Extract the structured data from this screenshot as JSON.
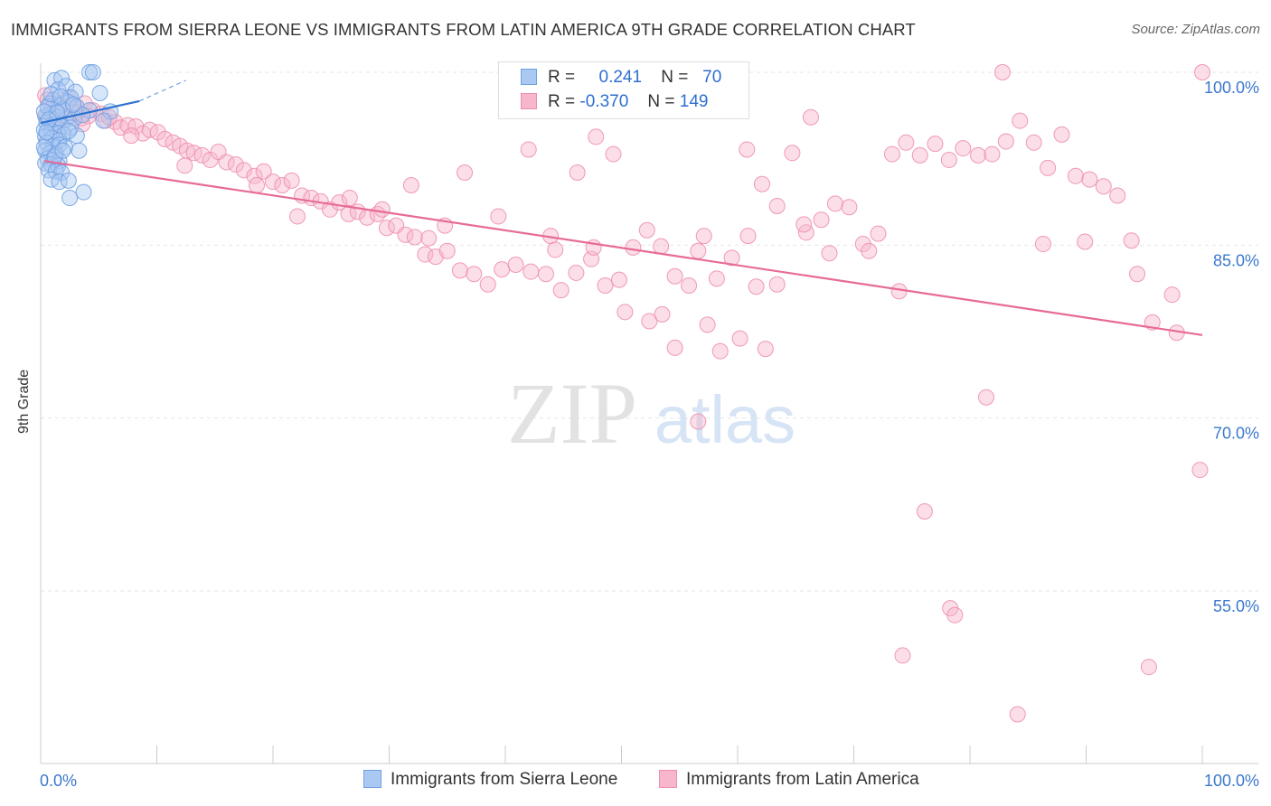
{
  "title": "IMMIGRANTS FROM SIERRA LEONE VS IMMIGRANTS FROM LATIN AMERICA 9TH GRADE CORRELATION CHART",
  "source": "Source: ZipAtlas.com",
  "watermark": {
    "zip": "ZIP",
    "atlas": "atlas"
  },
  "legend": {
    "rows": [
      {
        "r_label": "R =",
        "r_value": "0.241",
        "n_label": "N =",
        "n_value": "70"
      },
      {
        "r_label": "R =",
        "r_value": "-0.370",
        "n_label": "N =",
        "n_value": "149"
      }
    ]
  },
  "bottom_legend": [
    "Immigrants from Sierra Leone",
    "Immigrants from Latin America"
  ],
  "colors": {
    "blue_fill": "#a9c8f2",
    "blue_stroke": "#6fa0e2",
    "blue_line": "#2e73d0",
    "pink_fill": "#f7b6cb",
    "pink_stroke": "#ee8fae",
    "pink_line": "#e76a98",
    "tick_text": "#3b78cc",
    "grid": "#e6e6e6"
  },
  "chart_data": {
    "type": "scatter",
    "title": "IMMIGRANTS FROM SIERRA LEONE VS IMMIGRANTS FROM LATIN AMERICA 9TH GRADE CORRELATION CHART",
    "xlabel": "",
    "ylabel": "9th Grade",
    "xlim": [
      0,
      100
    ],
    "ylim": [
      40,
      101.5
    ],
    "x_tick_labels": [
      {
        "value": 0,
        "label": "0.0%"
      },
      {
        "value": 100,
        "label": "100.0%"
      }
    ],
    "y_tick_labels": [
      {
        "value": 100,
        "label": "100.0%"
      },
      {
        "value": 85,
        "label": "85.0%"
      },
      {
        "value": 70,
        "label": "70.0%"
      },
      {
        "value": 55,
        "label": "55.0%"
      }
    ],
    "series": [
      {
        "name": "Immigrants from Sierra Leone",
        "color": "blue",
        "R": 0.241,
        "N": 70,
        "trend": {
          "x": [
            0,
            8.5
          ],
          "y": [
            95.6,
            97.5
          ],
          "dash_to": [
            12.5,
            99.3
          ]
        },
        "points": [
          [
            1.2,
            99.3
          ],
          [
            1.8,
            99.5
          ],
          [
            4.2,
            100
          ],
          [
            4.5,
            100
          ],
          [
            1.5,
            98.5
          ],
          [
            2.2,
            98.8
          ],
          [
            3,
            98.3
          ],
          [
            5.1,
            98.2
          ],
          [
            2.6,
            97.8
          ],
          [
            1.1,
            97.6
          ],
          [
            0.8,
            97.3
          ],
          [
            1.6,
            97.1
          ],
          [
            2.4,
            97.4
          ],
          [
            3.1,
            97
          ],
          [
            4.2,
            96.7
          ],
          [
            6,
            96.6
          ],
          [
            0.4,
            96.2
          ],
          [
            0.9,
            96.4
          ],
          [
            1.5,
            96.1
          ],
          [
            2.2,
            95.9
          ],
          [
            2.9,
            96
          ],
          [
            3.6,
            96.3
          ],
          [
            5.4,
            95.8
          ],
          [
            0.5,
            95.6
          ],
          [
            1.2,
            95.5
          ],
          [
            1.8,
            95.3
          ],
          [
            2.6,
            95.2
          ],
          [
            0.3,
            95
          ],
          [
            0.9,
            94.9
          ],
          [
            1.5,
            94.7
          ],
          [
            2,
            94.6
          ],
          [
            0.4,
            94.4
          ],
          [
            1,
            94.3
          ],
          [
            1.6,
            94.1
          ],
          [
            3.1,
            94.5
          ],
          [
            0.5,
            93.9
          ],
          [
            1.1,
            93.6
          ],
          [
            1.6,
            93.7
          ],
          [
            2.1,
            93.5
          ],
          [
            3.3,
            93.2
          ],
          [
            0.4,
            93.2
          ],
          [
            0.8,
            93
          ],
          [
            1.3,
            92.9
          ],
          [
            0.6,
            92.5
          ],
          [
            1.1,
            92.4
          ],
          [
            1.6,
            92.3
          ],
          [
            0.4,
            92.1
          ],
          [
            0.9,
            92
          ],
          [
            1.5,
            91.9
          ],
          [
            0.7,
            91.5
          ],
          [
            1.3,
            91.4
          ],
          [
            1.8,
            91.3
          ],
          [
            0.9,
            90.7
          ],
          [
            1.6,
            90.5
          ],
          [
            2.4,
            90.6
          ],
          [
            3.7,
            89.6
          ],
          [
            2.5,
            89.1
          ],
          [
            0.6,
            97
          ],
          [
            1.9,
            96.8
          ],
          [
            0.3,
            96.6
          ],
          [
            1.4,
            96.5
          ],
          [
            0.7,
            95.9
          ],
          [
            2.4,
            94.9
          ],
          [
            0.3,
            93.5
          ],
          [
            1.2,
            92.7
          ],
          [
            0.5,
            94.8
          ],
          [
            1.9,
            93.2
          ],
          [
            2.8,
            97.2
          ],
          [
            0.9,
            98.1
          ],
          [
            1.7,
            97.9
          ]
        ]
      },
      {
        "name": "Immigrants from Latin America",
        "color": "pink",
        "R": -0.37,
        "N": 149,
        "trend": {
          "x": [
            0.3,
            100
          ],
          "y": [
            92.3,
            77.2
          ]
        },
        "points": [
          [
            0.4,
            98
          ],
          [
            0.6,
            97.6
          ],
          [
            1.1,
            97.2
          ],
          [
            1.6,
            96.9
          ],
          [
            2.4,
            97.8
          ],
          [
            2.9,
            97.1
          ],
          [
            3.2,
            96.5
          ],
          [
            3.8,
            97.3
          ],
          [
            4.5,
            96.7
          ],
          [
            5.2,
            96.4
          ],
          [
            0.5,
            96.1
          ],
          [
            1.4,
            96.3
          ],
          [
            2.1,
            95.9
          ],
          [
            3.5,
            96
          ],
          [
            4.1,
            96.2
          ],
          [
            5.6,
            95.8
          ],
          [
            6.4,
            95.7
          ],
          [
            6.9,
            95.2
          ],
          [
            7.5,
            95.4
          ],
          [
            8.2,
            95.3
          ],
          [
            8.8,
            94.7
          ],
          [
            9.4,
            95
          ],
          [
            10.1,
            94.8
          ],
          [
            10.7,
            94.2
          ],
          [
            11.4,
            93.9
          ],
          [
            12,
            93.6
          ],
          [
            12.6,
            93.2
          ],
          [
            13.2,
            93
          ],
          [
            13.9,
            92.8
          ],
          [
            14.6,
            92.4
          ],
          [
            15.3,
            93.1
          ],
          [
            16,
            92.2
          ],
          [
            16.8,
            92
          ],
          [
            17.5,
            91.5
          ],
          [
            18.4,
            91
          ],
          [
            19.2,
            91.4
          ],
          [
            20,
            90.5
          ],
          [
            20.8,
            90.2
          ],
          [
            21.6,
            90.6
          ],
          [
            22.5,
            89.3
          ],
          [
            23.3,
            89.1
          ],
          [
            24.1,
            88.8
          ],
          [
            24.9,
            88.1
          ],
          [
            25.7,
            88.7
          ],
          [
            26.5,
            87.7
          ],
          [
            27.3,
            87.9
          ],
          [
            28.1,
            87.4
          ],
          [
            29,
            87.7
          ],
          [
            29.8,
            86.5
          ],
          [
            30.6,
            86.7
          ],
          [
            31.4,
            85.9
          ],
          [
            32.2,
            85.7
          ],
          [
            33.1,
            84.2
          ],
          [
            34,
            84
          ],
          [
            35,
            84.5
          ],
          [
            36.1,
            82.8
          ],
          [
            37.3,
            82.5
          ],
          [
            38.5,
            81.6
          ],
          [
            39.7,
            82.9
          ],
          [
            40.9,
            83.3
          ],
          [
            42.2,
            82.7
          ],
          [
            43.5,
            82.5
          ],
          [
            44.8,
            81.1
          ],
          [
            46.1,
            82.6
          ],
          [
            47.4,
            83.8
          ],
          [
            48.6,
            81.5
          ],
          [
            49.8,
            82
          ],
          [
            51,
            84.8
          ],
          [
            52.2,
            86.3
          ],
          [
            53.4,
            84.9
          ],
          [
            54.6,
            82.3
          ],
          [
            55.8,
            81.5
          ],
          [
            57.1,
            85.8
          ],
          [
            58.2,
            82.1
          ],
          [
            59.5,
            83.9
          ],
          [
            60.8,
            93.3
          ],
          [
            62.1,
            90.3
          ],
          [
            63.4,
            88.4
          ],
          [
            64.7,
            93
          ],
          [
            65.9,
            86.1
          ],
          [
            67.2,
            87.2
          ],
          [
            68.4,
            88.6
          ],
          [
            69.6,
            88.3
          ],
          [
            70.8,
            85.1
          ],
          [
            72.1,
            86
          ],
          [
            73.3,
            92.9
          ],
          [
            74.5,
            93.9
          ],
          [
            75.7,
            92.8
          ],
          [
            77,
            93.8
          ],
          [
            78.2,
            92.4
          ],
          [
            79.4,
            93.4
          ],
          [
            80.7,
            92.8
          ],
          [
            81.9,
            92.9
          ],
          [
            83.1,
            94
          ],
          [
            84.3,
            95.8
          ],
          [
            85.5,
            93.9
          ],
          [
            86.7,
            91.7
          ],
          [
            87.9,
            94.6
          ],
          [
            89.1,
            91
          ],
          [
            90.3,
            90.7
          ],
          [
            91.5,
            90.1
          ],
          [
            92.7,
            89.3
          ],
          [
            93.9,
            85.4
          ],
          [
            42,
            93.3
          ],
          [
            46.2,
            91.3
          ],
          [
            47.8,
            94.4
          ],
          [
            49.3,
            92.9
          ],
          [
            36.5,
            91.3
          ],
          [
            31.9,
            90.2
          ],
          [
            26.6,
            89.1
          ],
          [
            22.1,
            87.5
          ],
          [
            34.8,
            86.7
          ],
          [
            39.4,
            87.5
          ],
          [
            43.9,
            85.8
          ],
          [
            47.6,
            84.8
          ],
          [
            50.3,
            79.2
          ],
          [
            52.4,
            78.4
          ],
          [
            53.5,
            79
          ],
          [
            57.4,
            78.1
          ],
          [
            54.6,
            76.1
          ],
          [
            58.5,
            75.8
          ],
          [
            60.2,
            76.9
          ],
          [
            62.4,
            76
          ],
          [
            56.6,
            69.7
          ],
          [
            65.7,
            86.8
          ],
          [
            67.9,
            84.3
          ],
          [
            71.3,
            84.5
          ],
          [
            73.9,
            81
          ],
          [
            63.4,
            81.6
          ],
          [
            81.4,
            71.8
          ],
          [
            76.1,
            61.9
          ],
          [
            78.3,
            53.5
          ],
          [
            78.7,
            52.9
          ],
          [
            74.2,
            49.4
          ],
          [
            84.1,
            44.3
          ],
          [
            86.3,
            85.1
          ],
          [
            89.9,
            85.3
          ],
          [
            94.4,
            82.5
          ],
          [
            97.4,
            80.7
          ],
          [
            99.8,
            65.5
          ],
          [
            95.4,
            48.4
          ],
          [
            97.8,
            77.4
          ],
          [
            95.7,
            78.3
          ],
          [
            100,
            100
          ],
          [
            82.8,
            100
          ],
          [
            66.3,
            96.1
          ],
          [
            60.9,
            85.8
          ],
          [
            56.6,
            84.5
          ],
          [
            33.4,
            85.6
          ],
          [
            29.4,
            88.1
          ],
          [
            7.8,
            94.5
          ],
          [
            5.9,
            96.1
          ],
          [
            3.6,
            95.5
          ],
          [
            2.1,
            97
          ],
          [
            1.6,
            95
          ],
          [
            12.4,
            91.9
          ],
          [
            18.6,
            90.2
          ],
          [
            44.3,
            84.6
          ],
          [
            61.6,
            81.4
          ]
        ]
      }
    ]
  }
}
